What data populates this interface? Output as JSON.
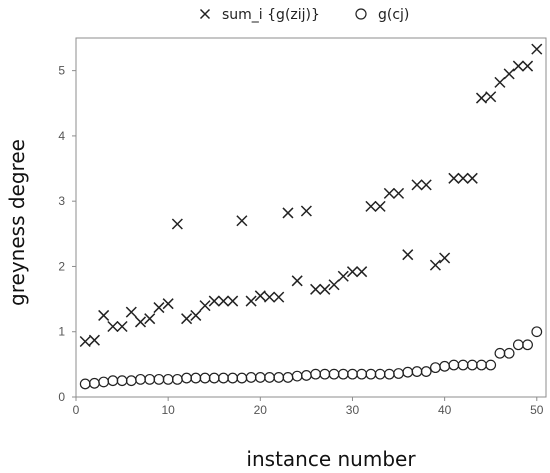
{
  "chart_data": {
    "type": "scatter",
    "xlabel": "instance number",
    "ylabel": "greyness degree",
    "xlim": [
      0,
      51
    ],
    "ylim": [
      0,
      5.5
    ],
    "xticks": [
      0,
      10,
      20,
      30,
      40,
      50
    ],
    "yticks": [
      0,
      1,
      2,
      3,
      4,
      5
    ],
    "grid": false,
    "legend_position": "top",
    "series": [
      {
        "name": "sum_i {g(zij)}",
        "marker": "x",
        "color": "#222222",
        "x": [
          1,
          2,
          3,
          4,
          5,
          6,
          7,
          8,
          9,
          10,
          11,
          12,
          13,
          14,
          15,
          16,
          17,
          18,
          19,
          20,
          21,
          22,
          23,
          24,
          25,
          26,
          27,
          28,
          29,
          30,
          31,
          32,
          33,
          34,
          35,
          36,
          37,
          38,
          39,
          40,
          41,
          42,
          43,
          44,
          45,
          46,
          47,
          48,
          49,
          50
        ],
        "y": [
          0.85,
          0.87,
          1.25,
          1.08,
          1.08,
          1.3,
          1.15,
          1.2,
          1.37,
          1.43,
          2.65,
          1.2,
          1.25,
          1.4,
          1.47,
          1.47,
          1.47,
          2.7,
          1.47,
          1.55,
          1.53,
          1.53,
          2.82,
          1.78,
          2.85,
          1.65,
          1.65,
          1.72,
          1.85,
          1.92,
          1.92,
          2.92,
          2.92,
          3.12,
          3.12,
          2.18,
          3.25,
          3.25,
          2.02,
          2.13,
          3.35,
          3.35,
          3.35,
          4.58,
          4.6,
          4.82,
          4.95,
          5.07,
          5.07,
          5.33
        ]
      },
      {
        "name": "g(cj)",
        "marker": "o",
        "color": "#222222",
        "x": [
          1,
          2,
          3,
          4,
          5,
          6,
          7,
          8,
          9,
          10,
          11,
          12,
          13,
          14,
          15,
          16,
          17,
          18,
          19,
          20,
          21,
          22,
          23,
          24,
          25,
          26,
          27,
          28,
          29,
          30,
          31,
          32,
          33,
          34,
          35,
          36,
          37,
          38,
          39,
          40,
          41,
          42,
          43,
          44,
          45,
          46,
          47,
          48,
          49,
          50
        ],
        "y": [
          0.2,
          0.21,
          0.23,
          0.25,
          0.25,
          0.25,
          0.27,
          0.27,
          0.27,
          0.27,
          0.27,
          0.29,
          0.29,
          0.29,
          0.29,
          0.29,
          0.29,
          0.29,
          0.3,
          0.3,
          0.3,
          0.3,
          0.3,
          0.32,
          0.33,
          0.35,
          0.35,
          0.35,
          0.35,
          0.35,
          0.35,
          0.35,
          0.35,
          0.35,
          0.36,
          0.38,
          0.39,
          0.39,
          0.45,
          0.47,
          0.49,
          0.49,
          0.49,
          0.49,
          0.49,
          0.67,
          0.67,
          0.8,
          0.8,
          1.0
        ]
      }
    ]
  }
}
